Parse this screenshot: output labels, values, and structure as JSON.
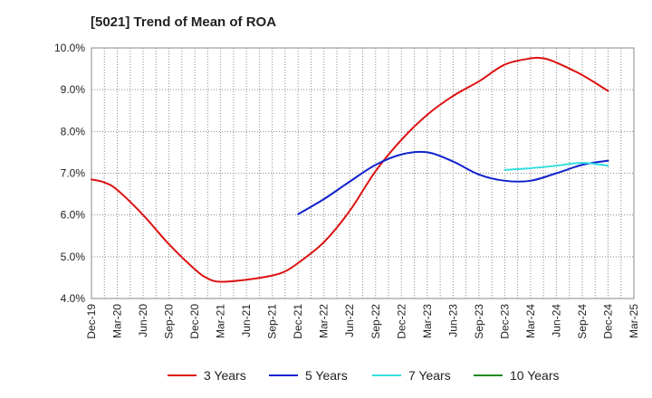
{
  "chart_data": {
    "type": "line",
    "title": "[5021]  Trend of Mean of ROA",
    "xlabel": "",
    "ylabel": "",
    "ylim": [
      4.0,
      10.0
    ],
    "y_ticks": [
      "4.0%",
      "5.0%",
      "6.0%",
      "7.0%",
      "8.0%",
      "9.0%",
      "10.0%"
    ],
    "x_ticks": [
      "Dec-19",
      "Mar-20",
      "Jun-20",
      "Sep-20",
      "Dec-20",
      "Mar-21",
      "Jun-21",
      "Sep-21",
      "Dec-21",
      "Mar-22",
      "Jun-22",
      "Sep-22",
      "Dec-22",
      "Mar-23",
      "Jun-23",
      "Sep-23",
      "Dec-23",
      "Mar-24",
      "Jun-24",
      "Sep-24",
      "Dec-24",
      "Mar-25"
    ],
    "series": [
      {
        "name": "3 Years",
        "color": "#dd1111",
        "points": [
          [
            0,
            6.85
          ],
          [
            0.5,
            6.78
          ],
          [
            1,
            6.6
          ],
          [
            2,
            6.0
          ],
          [
            3,
            5.3
          ],
          [
            4,
            4.7
          ],
          [
            4.5,
            4.48
          ],
          [
            5,
            4.4
          ],
          [
            6,
            4.45
          ],
          [
            7,
            4.55
          ],
          [
            7.5,
            4.65
          ],
          [
            8,
            4.85
          ],
          [
            9,
            5.35
          ],
          [
            10,
            6.1
          ],
          [
            11,
            7.05
          ],
          [
            12,
            7.8
          ],
          [
            13,
            8.4
          ],
          [
            14,
            8.85
          ],
          [
            15,
            9.2
          ],
          [
            16,
            9.6
          ],
          [
            17,
            9.75
          ],
          [
            17.5,
            9.75
          ],
          [
            18,
            9.65
          ],
          [
            19,
            9.35
          ],
          [
            20,
            8.97
          ]
        ]
      },
      {
        "name": "5 Years",
        "color": "#1122cc",
        "points": [
          [
            8,
            6.02
          ],
          [
            9,
            6.38
          ],
          [
            10,
            6.8
          ],
          [
            11,
            7.2
          ],
          [
            12,
            7.45
          ],
          [
            13,
            7.5
          ],
          [
            14,
            7.28
          ],
          [
            15,
            6.97
          ],
          [
            16,
            6.82
          ],
          [
            17,
            6.82
          ],
          [
            18,
            7.0
          ],
          [
            19,
            7.2
          ],
          [
            20,
            7.3
          ]
        ]
      },
      {
        "name": "7 Years",
        "color": "#33dddd",
        "points": [
          [
            16,
            7.08
          ],
          [
            17,
            7.12
          ],
          [
            18,
            7.18
          ],
          [
            19,
            7.25
          ],
          [
            20,
            7.18
          ]
        ]
      },
      {
        "name": "10 Years",
        "color": "#228822",
        "points": []
      }
    ],
    "legend": [
      "3 Years",
      "5 Years",
      "7 Years",
      "10 Years"
    ],
    "legend_position": "bottom",
    "grid": true
  }
}
